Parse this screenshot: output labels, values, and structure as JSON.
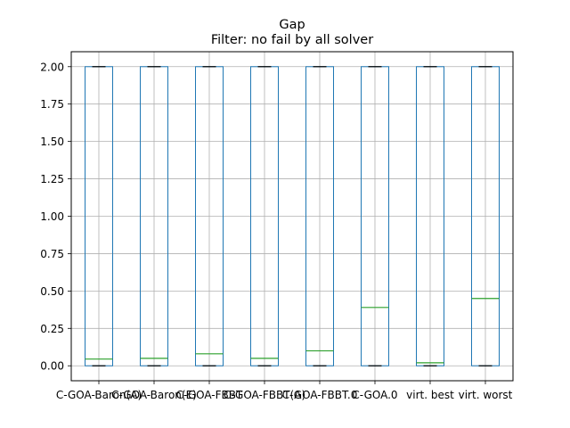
{
  "chart_data": {
    "type": "box",
    "title": "Gap",
    "subtitle": "Filter: no fail by all solver",
    "xlabel": "",
    "ylabel": "",
    "ylim": [
      -0.1,
      2.1
    ],
    "yticks": [
      0.0,
      0.25,
      0.5,
      0.75,
      1.0,
      1.25,
      1.5,
      1.75,
      2.0
    ],
    "ytick_labels": [
      "0.00",
      "0.25",
      "0.50",
      "0.75",
      "1.00",
      "1.25",
      "1.50",
      "1.75",
      "2.00"
    ],
    "categories": [
      "C-GOA-Baron(A)",
      "C-GOA-Baron(E)",
      "C-GOA-FBBT",
      "C-GOA-FBBT(A)",
      "C-GOA-FBBT.0",
      "C-GOA.0",
      "virt. best",
      "virt. worst"
    ],
    "boxes": [
      {
        "min": 0.0,
        "q1": 0.0,
        "median": 0.045,
        "q3": 2.0,
        "max": 2.0
      },
      {
        "min": 0.0,
        "q1": 0.0,
        "median": 0.05,
        "q3": 2.0,
        "max": 2.0
      },
      {
        "min": 0.0,
        "q1": 0.0,
        "median": 0.08,
        "q3": 2.0,
        "max": 2.0
      },
      {
        "min": 0.0,
        "q1": 0.0,
        "median": 0.05,
        "q3": 2.0,
        "max": 2.0
      },
      {
        "min": 0.0,
        "q1": 0.0,
        "median": 0.1,
        "q3": 2.0,
        "max": 2.0
      },
      {
        "min": 0.0,
        "q1": 0.0,
        "median": 0.39,
        "q3": 2.0,
        "max": 2.0
      },
      {
        "min": 0.0,
        "q1": 0.0,
        "median": 0.02,
        "q3": 2.0,
        "max": 2.0
      },
      {
        "min": 0.0,
        "q1": 0.0,
        "median": 0.45,
        "q3": 2.0,
        "max": 2.0
      }
    ],
    "grid": true,
    "colors": {
      "box": "#1f77b4",
      "median": "#2ca02c",
      "grid": "#b0b0b0",
      "whisker": "#000000"
    }
  }
}
